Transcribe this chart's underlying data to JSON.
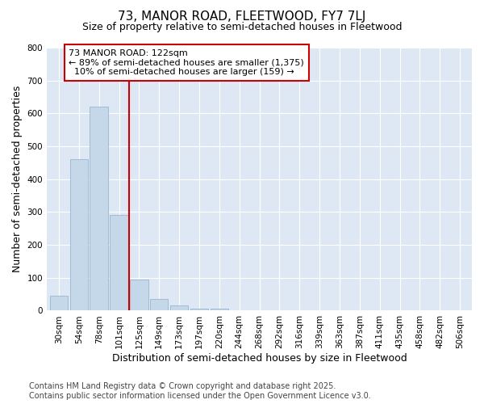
{
  "title": "73, MANOR ROAD, FLEETWOOD, FY7 7LJ",
  "subtitle": "Size of property relative to semi-detached houses in Fleetwood",
  "xlabel": "Distribution of semi-detached houses by size in Fleetwood",
  "ylabel": "Number of semi-detached properties",
  "categories": [
    "30sqm",
    "54sqm",
    "78sqm",
    "101sqm",
    "125sqm",
    "149sqm",
    "173sqm",
    "197sqm",
    "220sqm",
    "244sqm",
    "268sqm",
    "292sqm",
    "316sqm",
    "339sqm",
    "363sqm",
    "387sqm",
    "411sqm",
    "435sqm",
    "458sqm",
    "482sqm",
    "506sqm"
  ],
  "values": [
    45,
    460,
    620,
    290,
    95,
    35,
    15,
    5,
    5,
    0,
    0,
    0,
    0,
    0,
    0,
    0,
    0,
    0,
    0,
    0,
    0
  ],
  "bar_color": "#c5d8ea",
  "bar_edge_color": "#a0bcd4",
  "vline_bar_index": 4,
  "vline_color": "#cc0000",
  "annotation_text": "73 MANOR ROAD: 122sqm\n← 89% of semi-detached houses are smaller (1,375)\n  10% of semi-detached houses are larger (159) →",
  "annotation_box_color": "#ffffff",
  "annotation_border_color": "#cc0000",
  "ylim": [
    0,
    800
  ],
  "yticks": [
    0,
    100,
    200,
    300,
    400,
    500,
    600,
    700,
    800
  ],
  "footer_text": "Contains HM Land Registry data © Crown copyright and database right 2025.\nContains public sector information licensed under the Open Government Licence v3.0.",
  "background_color": "#ffffff",
  "plot_background_color": "#dde8f4",
  "title_fontsize": 11,
  "subtitle_fontsize": 9,
  "axis_label_fontsize": 9,
  "tick_fontsize": 7.5,
  "annotation_fontsize": 8,
  "footer_fontsize": 7
}
